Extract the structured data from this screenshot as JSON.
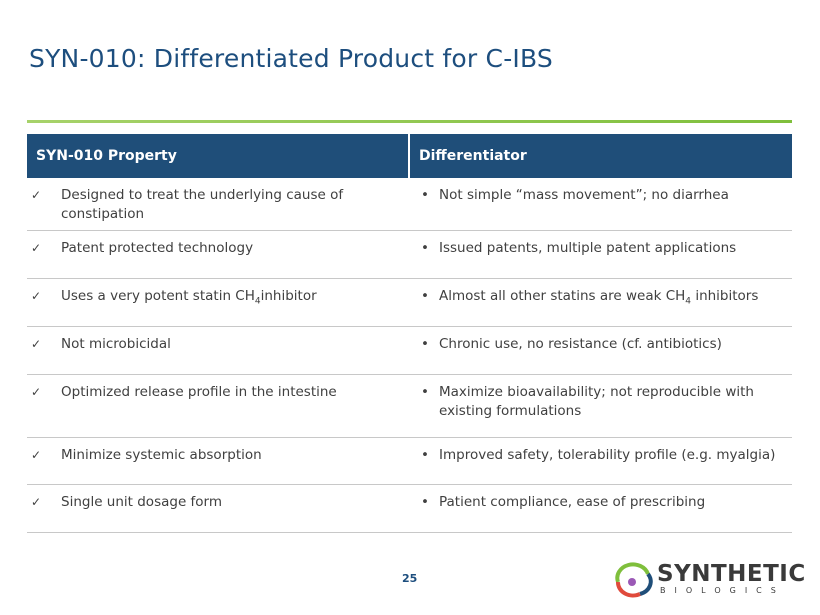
{
  "header": {
    "title": "SYN-010: Differentiated Product for C-IBS"
  },
  "table": {
    "columns": [
      "SYN-010 Property",
      "Differentiator"
    ],
    "rows": [
      [
        "Designed to treat the underlying cause of constipation",
        "Not simple “mass movement”; no diarrhea"
      ],
      [
        "Patent protected technology",
        "Issued patents, multiple patent applications"
      ],
      [
        [
          "Uses a very potent statin CH",
          "4",
          "inhibitor"
        ],
        [
          "Almost all other statins are weak CH",
          "4",
          " inhibitors"
        ]
      ],
      [
        "Not microbicidal",
        "Chronic use, no resistance (cf. antibiotics)"
      ],
      [
        "Optimized release profile in the intestine",
        "Maximize bioavailability; not reproducible with existing formulations"
      ],
      [
        "Minimize systemic absorption",
        "Improved safety, tolerability profile (e.g. myalgia)"
      ],
      [
        "Single unit dosage form",
        "Patient compliance, ease of prescribing"
      ]
    ]
  },
  "footer": {
    "page_number": "25",
    "logo": {
      "name": "SYNTHETIC",
      "tagline": "BIOLOGICS"
    }
  }
}
